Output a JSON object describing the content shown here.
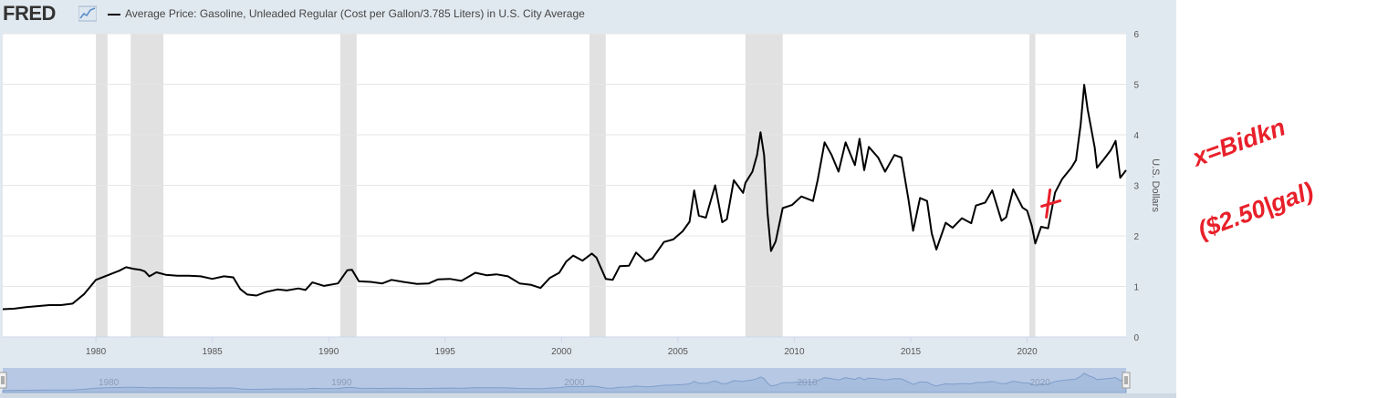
{
  "header": {
    "logo_text": "FRED",
    "series_title": "Average Price: Gasoline, Unleaded Regular (Cost per Gallon/3.785 Liters) in U.S. City Average"
  },
  "annotation": {
    "text_line1": "x=Bidkn",
    "text_line2": "($2.50|gal)",
    "color": "#e8202a"
  },
  "colors": {
    "background": "#e1e9f0",
    "plot": "#ffffff",
    "line": "#000000",
    "recession": "#e1e1e1",
    "navigator_fill": "#a7bddd",
    "navigator_line": "#7f9ecb"
  },
  "chart_data": {
    "type": "line",
    "ylabel": "U.S. Dollars",
    "xlim": [
      1976.0,
      2024.25
    ],
    "ylim": [
      0,
      6
    ],
    "y_ticks": [
      0,
      1,
      2,
      3,
      4,
      5,
      6
    ],
    "x_ticks": [
      1980,
      1985,
      1990,
      1995,
      2000,
      2005,
      2010,
      2015,
      2020
    ],
    "grid": true,
    "legend": "top-left",
    "recessions": [
      [
        1980.0,
        1980.5
      ],
      [
        1981.5,
        1982.9
      ],
      [
        1990.5,
        1991.2
      ],
      [
        2001.2,
        2001.9
      ],
      [
        2007.9,
        2009.5
      ],
      [
        2020.1,
        2020.35
      ]
    ],
    "navigator_labels": [
      "1980",
      "1990",
      "2000",
      "2010",
      "2020"
    ],
    "series": [
      {
        "points": [
          [
            1976.0,
            0.55
          ],
          [
            1976.5,
            0.56
          ],
          [
            1977.0,
            0.59
          ],
          [
            1977.5,
            0.61
          ],
          [
            1978.0,
            0.63
          ],
          [
            1978.5,
            0.63
          ],
          [
            1979.0,
            0.66
          ],
          [
            1979.5,
            0.85
          ],
          [
            1980.0,
            1.13
          ],
          [
            1980.5,
            1.22
          ],
          [
            1981.0,
            1.31
          ],
          [
            1981.3,
            1.38
          ],
          [
            1981.6,
            1.35
          ],
          [
            1981.9,
            1.33
          ],
          [
            1982.1,
            1.3
          ],
          [
            1982.3,
            1.2
          ],
          [
            1982.6,
            1.28
          ],
          [
            1983.0,
            1.23
          ],
          [
            1983.5,
            1.21
          ],
          [
            1984.0,
            1.21
          ],
          [
            1984.5,
            1.2
          ],
          [
            1985.0,
            1.15
          ],
          [
            1985.5,
            1.2
          ],
          [
            1985.9,
            1.18
          ],
          [
            1986.2,
            0.95
          ],
          [
            1986.5,
            0.84
          ],
          [
            1986.9,
            0.82
          ],
          [
            1987.3,
            0.89
          ],
          [
            1987.8,
            0.94
          ],
          [
            1988.2,
            0.92
          ],
          [
            1988.7,
            0.96
          ],
          [
            1989.0,
            0.93
          ],
          [
            1989.3,
            1.08
          ],
          [
            1989.8,
            1.01
          ],
          [
            1990.4,
            1.06
          ],
          [
            1990.8,
            1.32
          ],
          [
            1991.0,
            1.33
          ],
          [
            1991.3,
            1.1
          ],
          [
            1991.8,
            1.09
          ],
          [
            1992.3,
            1.06
          ],
          [
            1992.7,
            1.13
          ],
          [
            1993.2,
            1.09
          ],
          [
            1993.8,
            1.05
          ],
          [
            1994.3,
            1.06
          ],
          [
            1994.7,
            1.14
          ],
          [
            1995.2,
            1.15
          ],
          [
            1995.7,
            1.11
          ],
          [
            1996.3,
            1.27
          ],
          [
            1996.8,
            1.22
          ],
          [
            1997.2,
            1.24
          ],
          [
            1997.7,
            1.2
          ],
          [
            1998.2,
            1.06
          ],
          [
            1998.7,
            1.03
          ],
          [
            1999.1,
            0.97
          ],
          [
            1999.5,
            1.17
          ],
          [
            1999.9,
            1.27
          ],
          [
            2000.2,
            1.49
          ],
          [
            2000.5,
            1.61
          ],
          [
            2000.9,
            1.51
          ],
          [
            2001.3,
            1.65
          ],
          [
            2001.5,
            1.57
          ],
          [
            2001.9,
            1.15
          ],
          [
            2002.2,
            1.13
          ],
          [
            2002.5,
            1.4
          ],
          [
            2002.9,
            1.41
          ],
          [
            2003.2,
            1.67
          ],
          [
            2003.6,
            1.5
          ],
          [
            2003.9,
            1.55
          ],
          [
            2004.4,
            1.88
          ],
          [
            2004.8,
            1.93
          ],
          [
            2005.2,
            2.09
          ],
          [
            2005.5,
            2.28
          ],
          [
            2005.7,
            2.9
          ],
          [
            2005.9,
            2.4
          ],
          [
            2006.2,
            2.36
          ],
          [
            2006.6,
            3.0
          ],
          [
            2006.9,
            2.27
          ],
          [
            2007.1,
            2.33
          ],
          [
            2007.4,
            3.1
          ],
          [
            2007.8,
            2.85
          ],
          [
            2007.9,
            3.05
          ],
          [
            2008.2,
            3.27
          ],
          [
            2008.4,
            3.6
          ],
          [
            2008.55,
            4.05
          ],
          [
            2008.7,
            3.6
          ],
          [
            2008.85,
            2.45
          ],
          [
            2009.0,
            1.7
          ],
          [
            2009.2,
            1.89
          ],
          [
            2009.5,
            2.55
          ],
          [
            2009.9,
            2.61
          ],
          [
            2010.3,
            2.78
          ],
          [
            2010.8,
            2.69
          ],
          [
            2011.0,
            3.1
          ],
          [
            2011.3,
            3.85
          ],
          [
            2011.6,
            3.6
          ],
          [
            2011.9,
            3.27
          ],
          [
            2012.2,
            3.85
          ],
          [
            2012.6,
            3.4
          ],
          [
            2012.8,
            3.92
          ],
          [
            2013.0,
            3.3
          ],
          [
            2013.2,
            3.76
          ],
          [
            2013.6,
            3.55
          ],
          [
            2013.9,
            3.27
          ],
          [
            2014.3,
            3.6
          ],
          [
            2014.6,
            3.55
          ],
          [
            2014.9,
            2.72
          ],
          [
            2015.1,
            2.1
          ],
          [
            2015.4,
            2.75
          ],
          [
            2015.7,
            2.69
          ],
          [
            2015.9,
            2.05
          ],
          [
            2016.1,
            1.73
          ],
          [
            2016.5,
            2.26
          ],
          [
            2016.8,
            2.16
          ],
          [
            2017.2,
            2.35
          ],
          [
            2017.6,
            2.25
          ],
          [
            2017.8,
            2.6
          ],
          [
            2018.2,
            2.66
          ],
          [
            2018.5,
            2.9
          ],
          [
            2018.9,
            2.3
          ],
          [
            2019.1,
            2.37
          ],
          [
            2019.4,
            2.92
          ],
          [
            2019.8,
            2.56
          ],
          [
            2020.0,
            2.5
          ],
          [
            2020.2,
            2.2
          ],
          [
            2020.35,
            1.85
          ],
          [
            2020.6,
            2.18
          ],
          [
            2020.9,
            2.15
          ],
          [
            2021.2,
            2.86
          ],
          [
            2021.5,
            3.12
          ],
          [
            2021.9,
            3.35
          ],
          [
            2022.1,
            3.5
          ],
          [
            2022.3,
            4.2
          ],
          [
            2022.45,
            4.99
          ],
          [
            2022.6,
            4.5
          ],
          [
            2022.9,
            3.75
          ],
          [
            2023.0,
            3.35
          ],
          [
            2023.3,
            3.52
          ],
          [
            2023.6,
            3.7
          ],
          [
            2023.8,
            3.88
          ],
          [
            2024.0,
            3.15
          ],
          [
            2024.25,
            3.3
          ]
        ]
      }
    ]
  }
}
